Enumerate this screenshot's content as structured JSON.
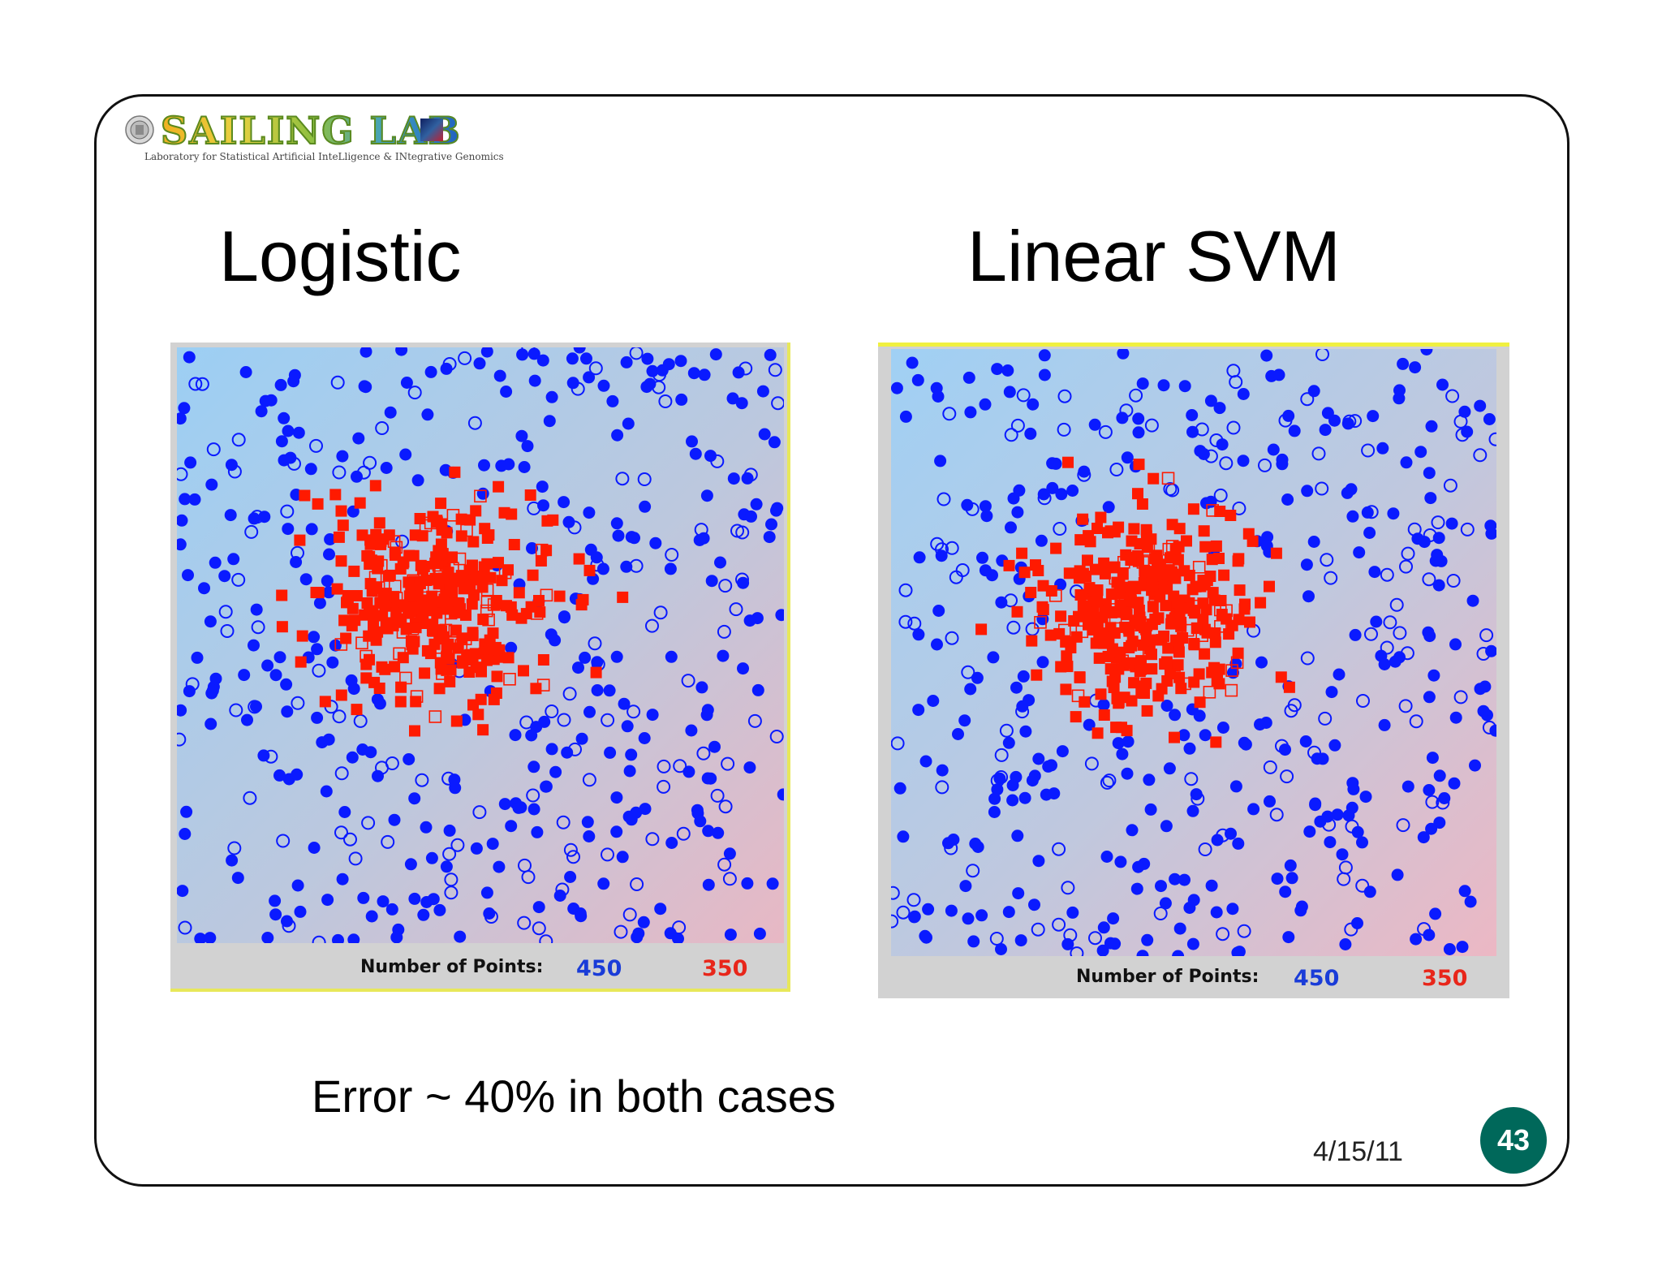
{
  "header": {
    "logo_text": "SAILING LAB",
    "logo_subtitle": "Laboratory for Statistical Artificial InteLligence & INtegrative Genomics"
  },
  "slide": {
    "left_title": "Logistic",
    "right_title": "Linear SVM",
    "caption": "Error ~ 40% in both cases",
    "date": "4/15/11",
    "page_number": "43"
  },
  "colors": {
    "blue_class": "#0a1aff",
    "red_class": "#ff1a00",
    "badge": "#00685a"
  },
  "chart_data": [
    {
      "type": "scatter",
      "title": "Logistic",
      "footer_label": "Number of Points:",
      "series": [
        {
          "count_label": "450",
          "color": "#0a1aff",
          "marker": "circle"
        },
        {
          "count_label": "350",
          "color": "#ff1a00",
          "marker": "square"
        }
      ],
      "background": "gradient blue (left) to pink (right)",
      "grid": false
    },
    {
      "type": "scatter",
      "title": "Linear SVM",
      "footer_label": "Number of Points:",
      "series": [
        {
          "count_label": "450",
          "color": "#0a1aff",
          "marker": "circle"
        },
        {
          "count_label": "350",
          "color": "#ff1a00",
          "marker": "square"
        }
      ],
      "background": "gradient blue (left) to pink (right)",
      "grid": false
    }
  ]
}
